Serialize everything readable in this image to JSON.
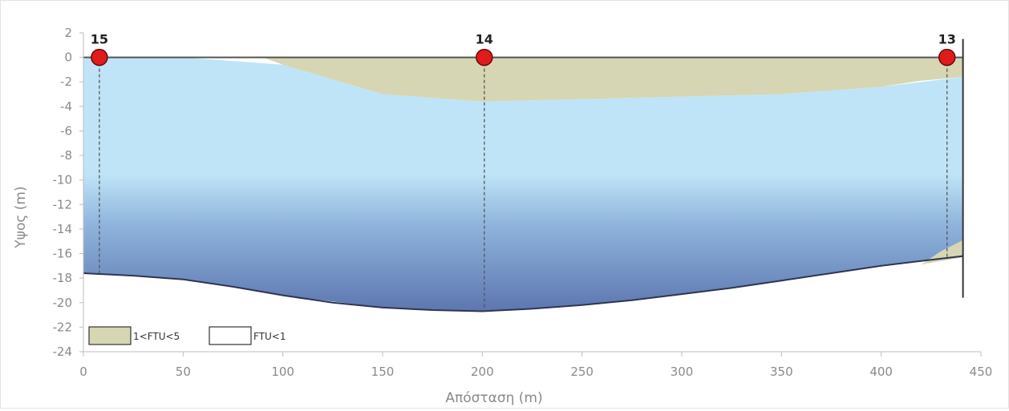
{
  "chart_data": {
    "type": "area",
    "title": "",
    "xlabel": "Απόσταση (m)",
    "ylabel": "Υψος (m)",
    "xlim": [
      0,
      450
    ],
    "ylim": [
      -24,
      2
    ],
    "x_ticks": [
      0,
      50,
      100,
      150,
      200,
      250,
      300,
      350,
      400,
      450
    ],
    "y_ticks": [
      2,
      0,
      -2,
      -4,
      -6,
      -8,
      -10,
      -12,
      -14,
      -16,
      -18,
      -20,
      -22,
      -24
    ],
    "grid": false,
    "legend_position": "bottom-left",
    "legend": [
      {
        "label": "1<FTU<5",
        "color": "#d6d6b4"
      },
      {
        "label": "FTU<1",
        "color": "#ffffff"
      }
    ],
    "stations": [
      {
        "label": "15",
        "x": 8
      },
      {
        "label": "14",
        "x": 201
      },
      {
        "label": "13",
        "x": 433
      }
    ],
    "series": [
      {
        "name": "1<FTU<5",
        "color": "#d6d6b4",
        "x": [
          0,
          90,
          100,
          150,
          200,
          250,
          300,
          350,
          400,
          420,
          441
        ],
        "upper": [
          0,
          0,
          0,
          0,
          0,
          0,
          0,
          0,
          0,
          0,
          0
        ],
        "lower": [
          0,
          0,
          -0.6,
          -3.0,
          -3.6,
          -3.4,
          -3.2,
          -3.0,
          -2.4,
          -1.9,
          -1.6
        ]
      },
      {
        "name": "1<FTU<5",
        "color": "#d6d6b4",
        "x": [
          420,
          430,
          441
        ],
        "upper": [
          -16.9,
          -15.8,
          -14.9
        ],
        "lower": [
          -16.9,
          -16.6,
          -16.3
        ]
      },
      {
        "name": "",
        "color": "#bfe4f7",
        "x": [
          0,
          50,
          100,
          150,
          200,
          250,
          300,
          350,
          400,
          441
        ],
        "upper": [
          0,
          0,
          -0.6,
          -3.0,
          -3.6,
          -3.4,
          -3.2,
          -3.0,
          -2.4,
          -1.6
        ],
        "lower": [
          -17.6,
          -18.1,
          -19.4,
          -20.4,
          -20.7,
          -20.2,
          -19.3,
          -18.2,
          -17.0,
          -16.2
        ]
      }
    ],
    "bed": {
      "x": [
        0,
        25,
        50,
        75,
        100,
        125,
        150,
        175,
        200,
        225,
        250,
        275,
        300,
        325,
        350,
        375,
        400,
        420,
        441
      ],
      "y": [
        -17.6,
        -17.8,
        -18.1,
        -18.7,
        -19.4,
        -20.0,
        -20.4,
        -20.6,
        -20.7,
        -20.5,
        -20.2,
        -19.8,
        -19.3,
        -18.8,
        -18.2,
        -17.6,
        -17.0,
        -16.6,
        -16.2
      ]
    }
  }
}
